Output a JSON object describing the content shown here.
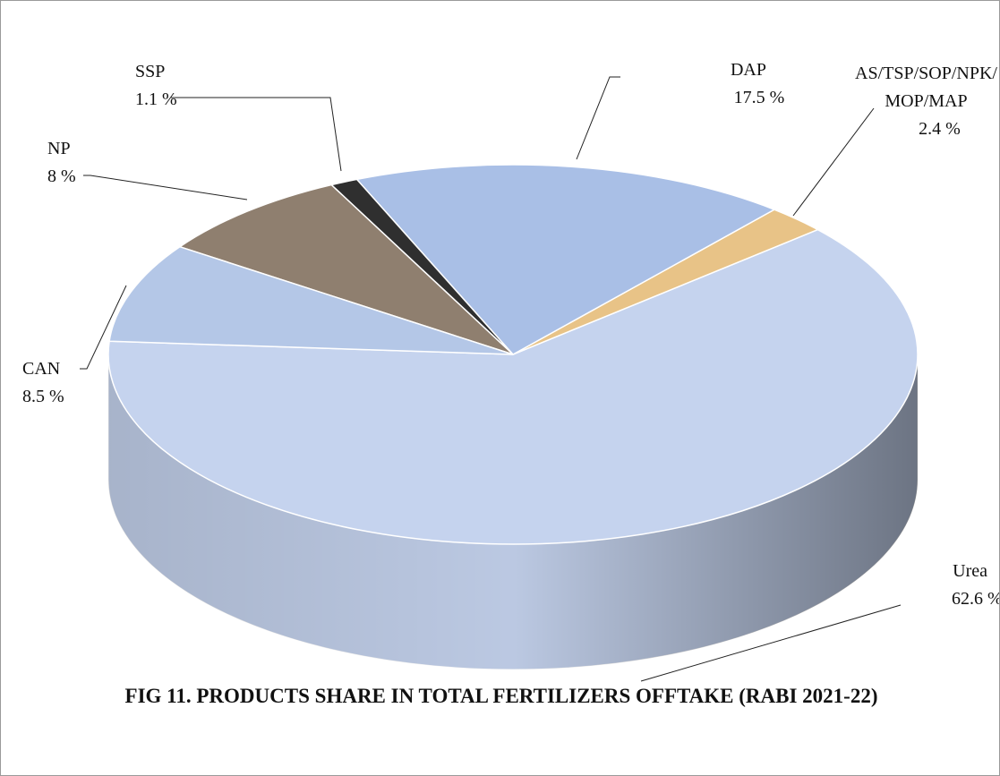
{
  "chart_data": {
    "type": "pie",
    "title": "FIG 11.  PRODUCTS SHARE IN TOTAL FERTILIZERS  OFFTAKE (RABI 2021-22)",
    "categories": [
      "Urea",
      "AS/TSP/SOP/NPK/MOP/MAP",
      "DAP",
      "SSP",
      "NP",
      "CAN"
    ],
    "values": [
      62.6,
      2.4,
      17.5,
      1.1,
      8,
      8.5
    ],
    "value_labels": [
      "62.6 %",
      "2.4 %",
      "17.5 %",
      "1.1 %",
      "8 %",
      "8.5 %"
    ],
    "colors": [
      "#c5d3ee",
      "#e8c387",
      "#a9bfe6",
      "#2f2f2f",
      "#8f7f6f",
      "#b4c7e7"
    ]
  }
}
